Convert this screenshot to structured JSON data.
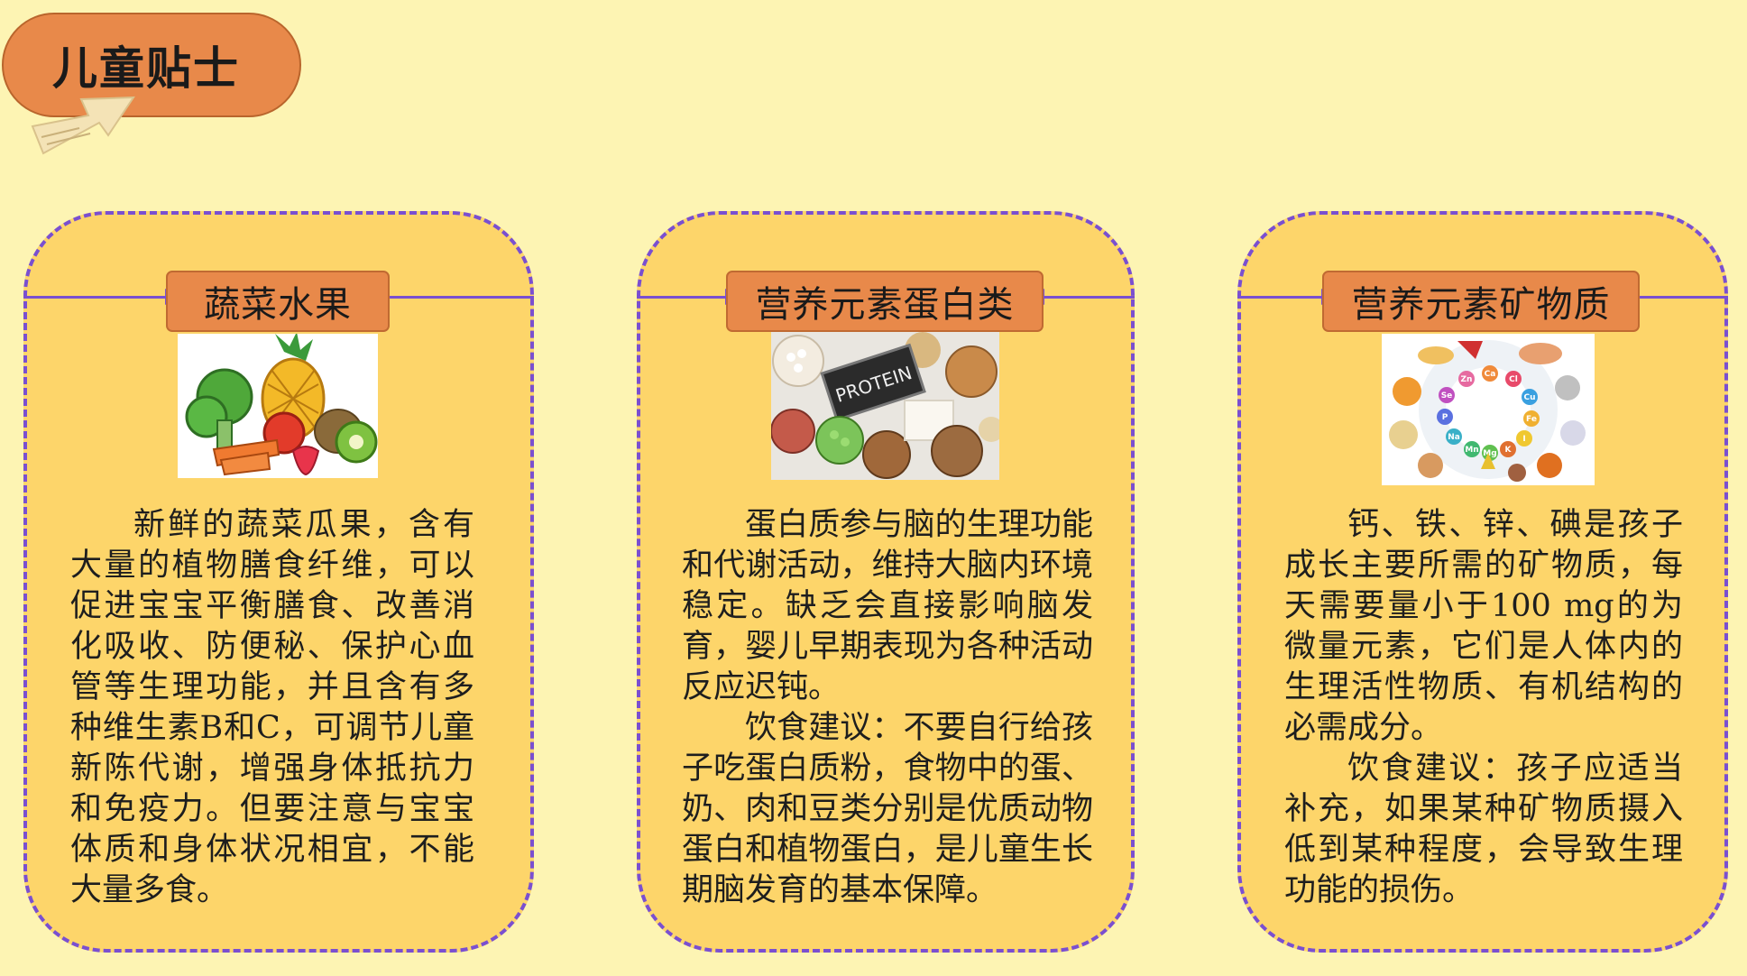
{
  "header": {
    "title": "儿童贴士"
  },
  "colors": {
    "background": "#fdf4b3",
    "card": "#fdd56a",
    "tag": "#e8894a",
    "border": "#7a4fd0"
  },
  "cards": [
    {
      "title": "蔬菜水果",
      "image_icon": "fruit-vegetable-illustration",
      "paragraphs": [
        "新鲜的蔬菜瓜果，含有大量的植物膳食纤维，可以促进宝宝平衡膳食、改善消化吸收、防便秘、保护心血管等生理功能，并且含有多种维生素B和C，可调节儿童新陈代谢，增强身体抵抗力和免疫力。但要注意与宝宝体质和身体状况相宜，不能大量多食。"
      ]
    },
    {
      "title": "营养元素蛋白类",
      "image_icon": "protein-foods-photo",
      "image_label": "PROTEIN",
      "paragraphs": [
        "蛋白质参与脑的生理功能和代谢活动，维持大脑内环境稳定。缺乏会直接影响脑发育，婴儿早期表现为各种活动反应迟钝。",
        "饮食建议：不要自行给孩子吃蛋白质粉，食物中的蛋、奶、肉和豆类分别是优质动物蛋白和植物蛋白，是儿童生长期脑发育的基本保障。"
      ]
    },
    {
      "title": "营养元素矿物质",
      "image_icon": "minerals-wheel-illustration",
      "image_elements": [
        "Zn",
        "Ca",
        "Cl",
        "Se",
        "Cu",
        "P",
        "Fe",
        "Na",
        "I",
        "Mn",
        "Mg",
        "K"
      ],
      "paragraphs": [
        "钙、铁、锌、碘是孩子成长主要所需的矿物质，每天需要量小于100 mg的为微量元素，它们是人体内的生理活性物质、有机结构的必需成分。",
        "饮食建议：孩子应适当补充，如果某种矿物质摄入低到某种程度，会导致生理功能的损伤。"
      ]
    }
  ]
}
